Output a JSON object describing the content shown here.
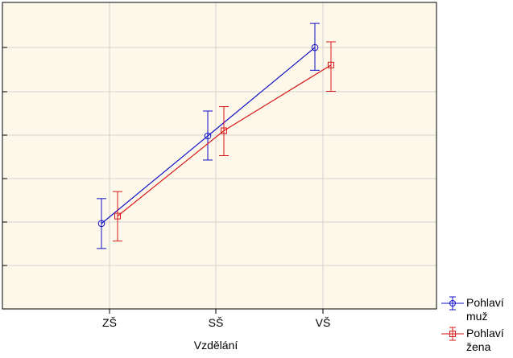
{
  "chart_data": {
    "type": "line",
    "xlabel": "Vzdělání",
    "ylabel": "",
    "categories": [
      "ZŠ",
      "SŠ",
      "VŠ"
    ],
    "ylim": [
      0,
      7
    ],
    "grid": true,
    "legend_position": "bottom-right",
    "colors": {
      "plot_bg": "#fdf8ea",
      "grid": "#d2d2d2",
      "axis": "#000000"
    },
    "series": [
      {
        "name": "Pohlaví\nmuž",
        "color": "#1010c8",
        "marker": "circle",
        "values": [
          1.95,
          3.95,
          5.97
        ],
        "error_low": [
          1.38,
          3.4,
          5.45
        ],
        "error_high": [
          2.52,
          4.52,
          6.52
        ]
      },
      {
        "name": "Pohlaví\nžena",
        "color": "#d81818",
        "marker": "square",
        "values": [
          2.12,
          4.07,
          5.57
        ],
        "error_low": [
          1.55,
          3.5,
          4.97
        ],
        "error_high": [
          2.68,
          4.62,
          6.1
        ]
      }
    ]
  }
}
